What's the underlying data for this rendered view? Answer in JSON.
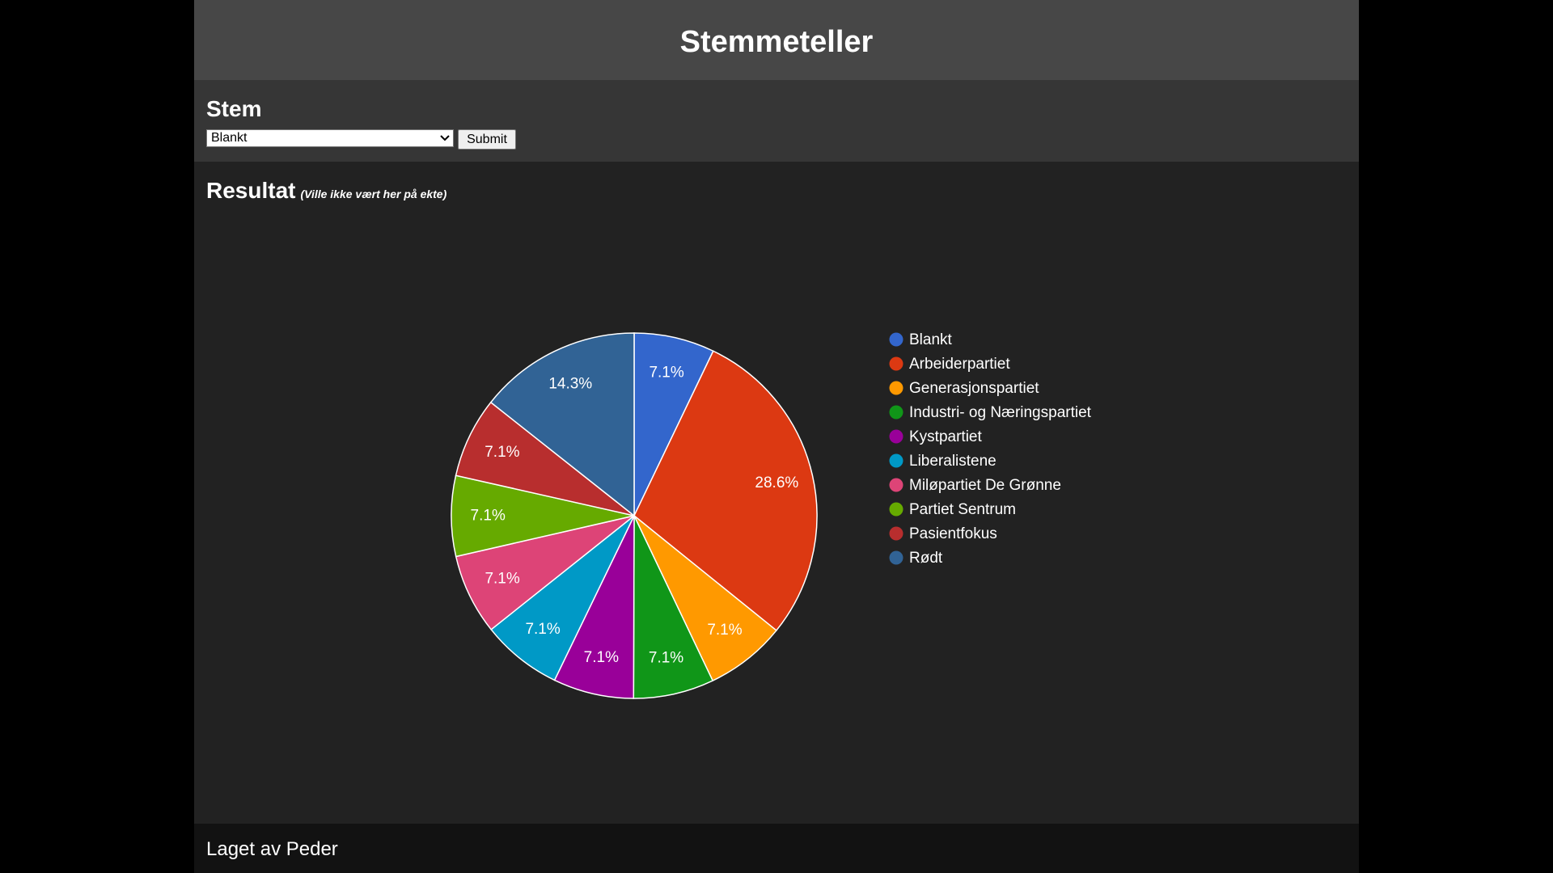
{
  "header": {
    "title": "Stemmeteller"
  },
  "vote": {
    "heading": "Stem",
    "selected": "Blankt",
    "button": "Submit"
  },
  "chart_data": {
    "type": "pie",
    "title": "Resultat",
    "subtitle": "(Ville ikke vært her på ekte)",
    "categories": [
      "Blankt",
      "Arbeiderpartiet",
      "Generasjonspartiet",
      "Industri- og Næringspartiet",
      "Kystpartiet",
      "Liberalistene",
      "Miløpartiet De Grønne",
      "Partiet Sentrum",
      "Pasientfokus",
      "Rødt"
    ],
    "values": [
      7.1,
      28.6,
      7.1,
      7.1,
      7.1,
      7.1,
      7.1,
      7.1,
      7.1,
      14.3
    ],
    "value_labels": [
      "7.1%",
      "28.6%",
      "7.1%",
      "7.1%",
      "7.1%",
      "7.1%",
      "7.1%",
      "7.1%",
      "7.1%",
      "14.3%"
    ],
    "colors": [
      "#3366cc",
      "#dc3912",
      "#ff9900",
      "#109618",
      "#990099",
      "#0099c6",
      "#dd4477",
      "#66aa00",
      "#b82e2e",
      "#316395"
    ],
    "legend": "right"
  },
  "footer": {
    "text": "Laget av Peder"
  }
}
